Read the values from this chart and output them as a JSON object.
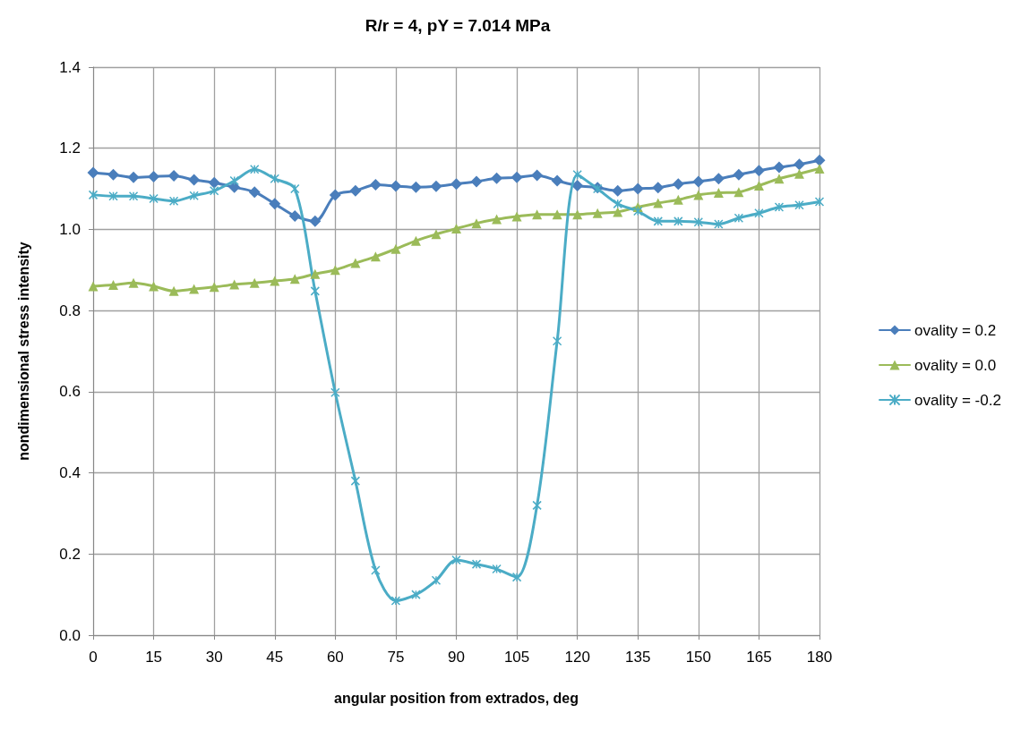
{
  "chart_data": {
    "type": "line",
    "title": "R/r = 4, pY = 7.014 MPa",
    "xlabel": "angular position from extrados, deg",
    "ylabel": "nondimensional stress intensity",
    "x": [
      0,
      5,
      10,
      15,
      20,
      25,
      30,
      35,
      40,
      45,
      50,
      55,
      60,
      65,
      70,
      75,
      80,
      85,
      90,
      95,
      100,
      105,
      110,
      115,
      120,
      125,
      130,
      135,
      140,
      145,
      150,
      155,
      160,
      165,
      170,
      175,
      180
    ],
    "series": [
      {
        "name": "ovality = 0.2",
        "color": "#4a7ebb",
        "marker": "diamond",
        "values": [
          1.14,
          1.135,
          1.128,
          1.13,
          1.132,
          1.122,
          1.115,
          1.104,
          1.092,
          1.063,
          1.033,
          1.02,
          1.085,
          1.095,
          1.11,
          1.107,
          1.104,
          1.106,
          1.112,
          1.118,
          1.126,
          1.128,
          1.133,
          1.12,
          1.108,
          1.103,
          1.095,
          1.1,
          1.103,
          1.112,
          1.118,
          1.125,
          1.135,
          1.145,
          1.153,
          1.16,
          1.17
        ]
      },
      {
        "name": "ovality = 0.0",
        "color": "#9bbb59",
        "marker": "triangle",
        "values": [
          0.86,
          0.863,
          0.868,
          0.86,
          0.848,
          0.853,
          0.858,
          0.864,
          0.868,
          0.873,
          0.878,
          0.89,
          0.9,
          0.917,
          0.933,
          0.952,
          0.972,
          0.988,
          1.002,
          1.015,
          1.025,
          1.032,
          1.037,
          1.037,
          1.037,
          1.04,
          1.043,
          1.055,
          1.065,
          1.073,
          1.085,
          1.09,
          1.092,
          1.108,
          1.125,
          1.137,
          1.15
        ]
      },
      {
        "name": "ovality = -0.2",
        "color": "#4bacc6",
        "marker": "cross",
        "values": [
          1.085,
          1.082,
          1.082,
          1.076,
          1.07,
          1.083,
          1.095,
          1.12,
          1.148,
          1.125,
          1.1,
          0.848,
          0.598,
          0.38,
          0.16,
          0.085,
          0.1,
          0.135,
          0.185,
          0.175,
          0.163,
          0.143,
          0.32,
          0.725,
          1.135,
          1.1,
          1.063,
          1.045,
          1.02,
          1.02,
          1.018,
          1.013,
          1.028,
          1.04,
          1.055,
          1.06,
          1.068
        ]
      }
    ],
    "xlim": [
      0,
      180
    ],
    "xticks": [
      0,
      15,
      30,
      45,
      60,
      75,
      90,
      105,
      120,
      135,
      150,
      165,
      180
    ],
    "ylim": [
      0,
      1.4
    ],
    "yticks": [
      {
        "value": 0,
        "label": "0.0"
      },
      {
        "value": 0.2,
        "label": "0.2"
      },
      {
        "value": 0.4,
        "label": "0.4"
      },
      {
        "value": 0.6,
        "label": "0.6"
      },
      {
        "value": 0.8,
        "label": "0.8"
      },
      {
        "value": 1,
        "label": "1.0"
      },
      {
        "value": 1.2,
        "label": "1.2"
      },
      {
        "value": 1.4,
        "label": "1.4"
      }
    ],
    "grid": true,
    "legend": "right",
    "line_style": "solid"
  }
}
